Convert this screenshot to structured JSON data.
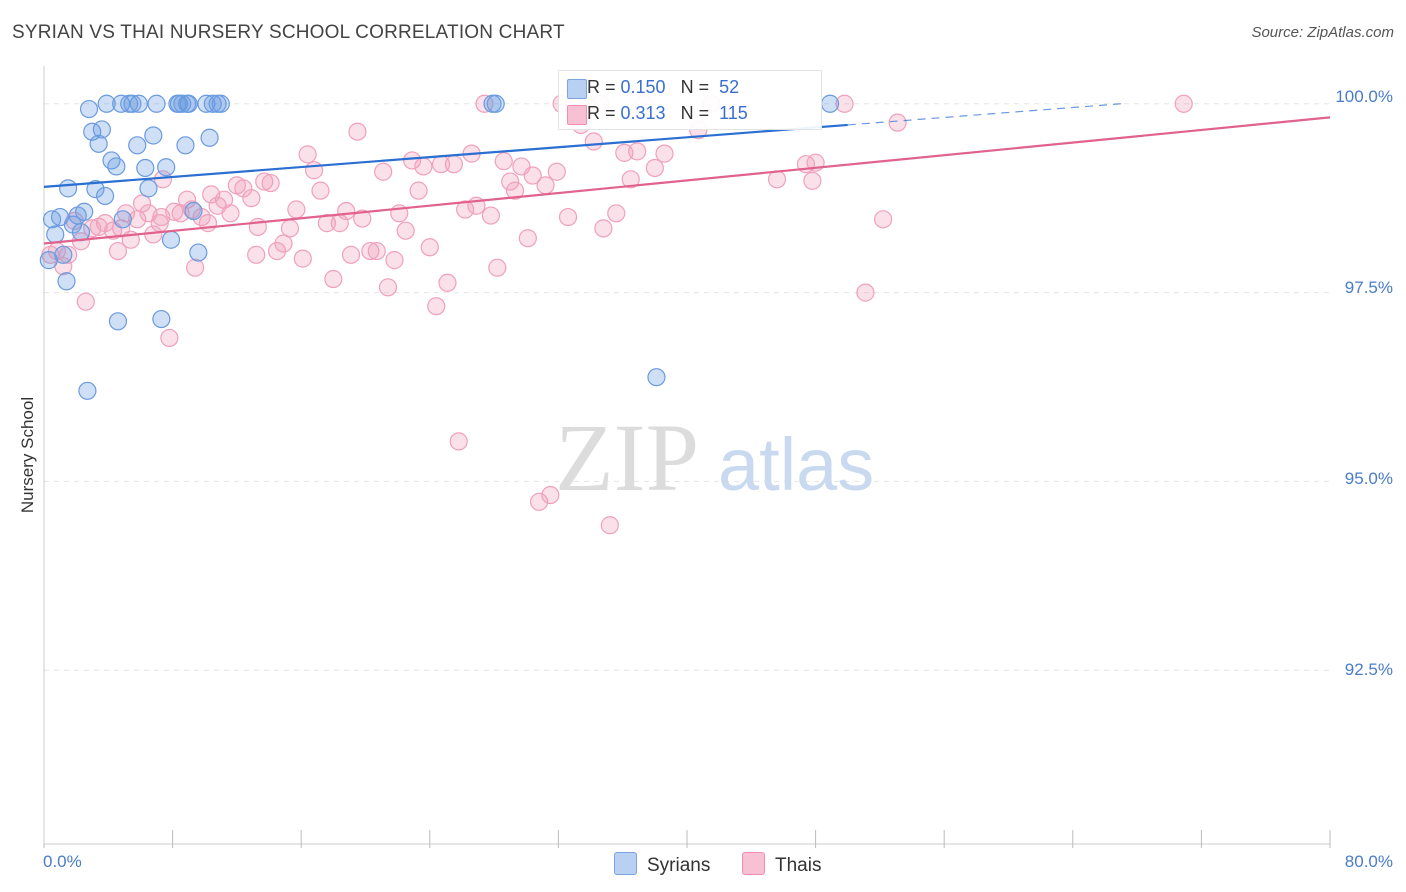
{
  "chart_data": {
    "type": "scatter",
    "title": "SYRIAN VS THAI NURSERY SCHOOL CORRELATION CHART",
    "source": "Source: ZipAtlas.com",
    "xlabel": "",
    "ylabel": "Nursery School",
    "xlim": [
      0,
      80
    ],
    "ylim": [
      90.2,
      100.5
    ],
    "x_tick_labels": [
      {
        "value": 0,
        "label": "0.0%"
      },
      {
        "value": 80,
        "label": "80.0%"
      }
    ],
    "y_tick_labels": [
      {
        "value": 100.0,
        "label": "100.0%"
      },
      {
        "value": 97.5,
        "label": "97.5%"
      },
      {
        "value": 95.0,
        "label": "95.0%"
      },
      {
        "value": 92.5,
        "label": "92.5%"
      }
    ],
    "watermark": {
      "left": "ZIP",
      "right": "atlas"
    },
    "series": [
      {
        "name": "Syrians",
        "color": "#6a9be0",
        "line_color": "#2a6fd1",
        "R": "0.150",
        "N": "52",
        "trend": {
          "x_start": 0,
          "y_start": 98.9,
          "x_end": 50,
          "y_end": 99.72,
          "dash_to_x": 67,
          "dash_to_y": 100.0
        },
        "points": [
          [
            0.3,
            97.93
          ],
          [
            0.5,
            98.47
          ],
          [
            0.7,
            98.27
          ],
          [
            1.0,
            98.5
          ],
          [
            1.2,
            98.0
          ],
          [
            1.4,
            97.65
          ],
          [
            1.5,
            98.88
          ],
          [
            1.8,
            98.4
          ],
          [
            2.1,
            98.52
          ],
          [
            2.3,
            98.3
          ],
          [
            2.5,
            98.57
          ],
          [
            2.8,
            99.93
          ],
          [
            3.0,
            99.63
          ],
          [
            3.2,
            98.87
          ],
          [
            3.4,
            99.47
          ],
          [
            3.6,
            99.66
          ],
          [
            3.8,
            98.78
          ],
          [
            3.9,
            100.0
          ],
          [
            4.2,
            99.25
          ],
          [
            4.5,
            99.17
          ],
          [
            4.8,
            100.0
          ],
          [
            4.9,
            98.47
          ],
          [
            5.3,
            100.0
          ],
          [
            5.5,
            100.0
          ],
          [
            5.8,
            99.45
          ],
          [
            5.9,
            100.0
          ],
          [
            6.3,
            99.15
          ],
          [
            6.5,
            98.88
          ],
          [
            6.8,
            99.58
          ],
          [
            7.0,
            100.0
          ],
          [
            7.3,
            97.15
          ],
          [
            7.6,
            99.16
          ],
          [
            7.9,
            98.2
          ],
          [
            8.3,
            100.0
          ],
          [
            8.6,
            100.0
          ],
          [
            8.9,
            100.0
          ],
          [
            8.4,
            100.0
          ],
          [
            9.0,
            100.0
          ],
          [
            8.8,
            99.45
          ],
          [
            9.3,
            98.58
          ],
          [
            9.6,
            98.03
          ],
          [
            10.1,
            100.0
          ],
          [
            10.3,
            99.55
          ],
          [
            10.5,
            100.0
          ],
          [
            10.8,
            100.0
          ],
          [
            11.0,
            100.0
          ],
          [
            27.9,
            100.0
          ],
          [
            28.1,
            100.0
          ],
          [
            38.1,
            96.38
          ],
          [
            48.9,
            100.0
          ],
          [
            4.6,
            97.12
          ],
          [
            2.7,
            96.2
          ]
        ]
      },
      {
        "name": "Thais",
        "color": "#f0a0bc",
        "line_color": "#e0628d",
        "R": "0.313",
        "N": "115",
        "trend": {
          "x_start": 0,
          "y_start": 98.15,
          "x_end": 80,
          "y_end": 99.82
        },
        "points": [
          [
            0.4,
            98.0
          ],
          [
            0.8,
            98.05
          ],
          [
            1.2,
            97.85
          ],
          [
            1.5,
            98.0
          ],
          [
            1.9,
            98.45
          ],
          [
            2.3,
            98.18
          ],
          [
            2.6,
            97.38
          ],
          [
            3.0,
            98.35
          ],
          [
            3.4,
            98.37
          ],
          [
            3.8,
            98.42
          ],
          [
            4.3,
            98.32
          ],
          [
            4.6,
            98.05
          ],
          [
            4.8,
            98.35
          ],
          [
            5.1,
            98.55
          ],
          [
            5.4,
            98.2
          ],
          [
            5.8,
            98.47
          ],
          [
            6.1,
            98.68
          ],
          [
            6.5,
            98.55
          ],
          [
            6.8,
            98.27
          ],
          [
            7.2,
            98.42
          ],
          [
            7.4,
            99.0
          ],
          [
            7.8,
            96.9
          ],
          [
            8.1,
            98.57
          ],
          [
            8.5,
            98.55
          ],
          [
            8.9,
            98.73
          ],
          [
            9.2,
            98.6
          ],
          [
            9.4,
            97.83
          ],
          [
            9.8,
            98.5
          ],
          [
            10.2,
            98.42
          ],
          [
            10.4,
            98.8
          ],
          [
            10.8,
            98.65
          ],
          [
            11.2,
            98.73
          ],
          [
            11.6,
            98.55
          ],
          [
            12.0,
            98.92
          ],
          [
            12.4,
            98.88
          ],
          [
            12.9,
            98.75
          ],
          [
            13.3,
            98.37
          ],
          [
            13.7,
            98.97
          ],
          [
            14.1,
            98.95
          ],
          [
            14.5,
            98.05
          ],
          [
            14.9,
            98.15
          ],
          [
            15.3,
            98.35
          ],
          [
            15.7,
            98.6
          ],
          [
            16.1,
            97.95
          ],
          [
            16.4,
            99.33
          ],
          [
            16.8,
            99.12
          ],
          [
            17.2,
            98.85
          ],
          [
            17.6,
            98.42
          ],
          [
            18.0,
            97.68
          ],
          [
            18.4,
            98.42
          ],
          [
            18.8,
            98.58
          ],
          [
            19.1,
            98.0
          ],
          [
            19.5,
            99.63
          ],
          [
            19.8,
            98.48
          ],
          [
            20.3,
            98.05
          ],
          [
            20.7,
            98.05
          ],
          [
            21.1,
            99.1
          ],
          [
            21.4,
            97.57
          ],
          [
            21.8,
            97.93
          ],
          [
            22.1,
            98.55
          ],
          [
            22.5,
            98.32
          ],
          [
            22.9,
            99.25
          ],
          [
            23.3,
            98.85
          ],
          [
            23.6,
            99.17
          ],
          [
            24.0,
            98.1
          ],
          [
            24.4,
            97.32
          ],
          [
            24.7,
            99.2
          ],
          [
            25.1,
            97.63
          ],
          [
            25.5,
            99.2
          ],
          [
            25.8,
            95.53
          ],
          [
            26.2,
            98.6
          ],
          [
            26.6,
            99.34
          ],
          [
            26.9,
            98.65
          ],
          [
            27.4,
            100.0
          ],
          [
            27.8,
            98.52
          ],
          [
            28.2,
            97.83
          ],
          [
            28.6,
            99.24
          ],
          [
            29.0,
            98.97
          ],
          [
            29.3,
            98.85
          ],
          [
            29.7,
            99.17
          ],
          [
            30.1,
            98.22
          ],
          [
            30.4,
            99.05
          ],
          [
            30.8,
            94.73
          ],
          [
            31.2,
            98.92
          ],
          [
            31.5,
            94.82
          ],
          [
            31.9,
            99.1
          ],
          [
            32.2,
            100.0
          ],
          [
            32.6,
            98.5
          ],
          [
            33.0,
            100.0
          ],
          [
            33.4,
            99.72
          ],
          [
            33.8,
            100.0
          ],
          [
            34.2,
            99.5
          ],
          [
            34.6,
            100.0
          ],
          [
            34.8,
            98.35
          ],
          [
            35.2,
            94.42
          ],
          [
            35.6,
            98.55
          ],
          [
            36.1,
            99.35
          ],
          [
            36.5,
            99.0
          ],
          [
            36.9,
            99.37
          ],
          [
            37.3,
            100.0
          ],
          [
            38.0,
            99.15
          ],
          [
            38.6,
            99.34
          ],
          [
            40.7,
            99.65
          ],
          [
            41.5,
            100.0
          ],
          [
            45.6,
            99.0
          ],
          [
            47.4,
            99.2
          ],
          [
            47.8,
            98.98
          ],
          [
            48.0,
            99.22
          ],
          [
            49.8,
            100.0
          ],
          [
            51.1,
            97.5
          ],
          [
            52.2,
            98.47
          ],
          [
            53.1,
            99.75
          ],
          [
            70.9,
            100.0
          ],
          [
            7.3,
            98.5
          ],
          [
            13.2,
            98.0
          ]
        ]
      }
    ]
  }
}
